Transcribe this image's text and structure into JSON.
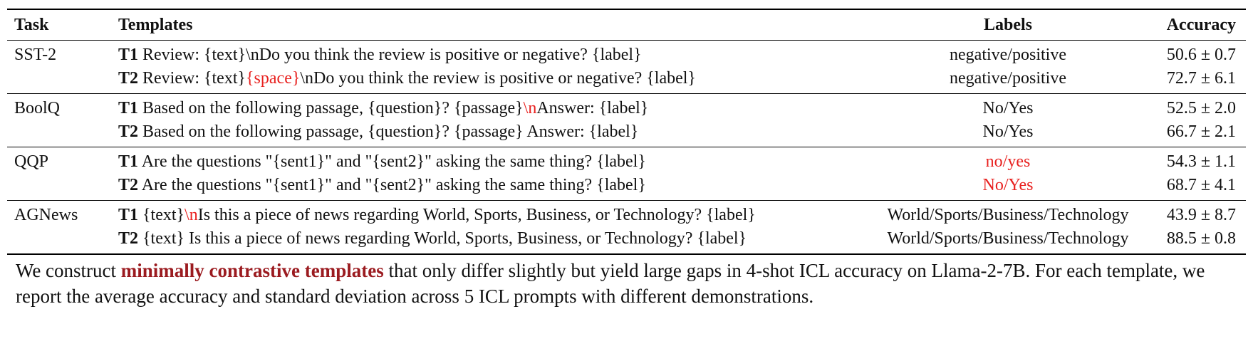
{
  "table": {
    "headers": [
      "Task",
      "Templates",
      "Labels",
      "Accuracy"
    ],
    "groups": [
      {
        "task": "SST-2",
        "rows": [
          {
            "id": "T1",
            "template": [
              {
                "text": " Review: {text}\\nDo you think the review is positive or negative? {label}"
              }
            ],
            "labels": "negative/positive",
            "labels_red": false,
            "accuracy": "50.6 ± 0.7"
          },
          {
            "id": "T2",
            "template": [
              {
                "text": " Review: {text}"
              },
              {
                "text": "{space}",
                "red": true
              },
              {
                "text": "\\nDo you think the review is positive or negative? {label}"
              }
            ],
            "labels": "negative/positive",
            "labels_red": false,
            "accuracy": "72.7 ± 6.1"
          }
        ]
      },
      {
        "task": "BoolQ",
        "rows": [
          {
            "id": "T1",
            "template": [
              {
                "text": " Based on the following passage, {question}? {passage}"
              },
              {
                "text": "\\n",
                "red": true
              },
              {
                "text": "Answer: {label}"
              }
            ],
            "labels": "No/Yes",
            "labels_red": false,
            "accuracy": "52.5 ± 2.0"
          },
          {
            "id": "T2",
            "template": [
              {
                "text": " Based on the following passage, {question}? {passage} Answer: {label}"
              }
            ],
            "labels": "No/Yes",
            "labels_red": false,
            "accuracy": "66.7 ± 2.1"
          }
        ]
      },
      {
        "task": "QQP",
        "rows": [
          {
            "id": "T1",
            "template": [
              {
                "text": " Are the questions \"{sent1}\" and \"{sent2}\" asking the same thing? {label}"
              }
            ],
            "labels": "no/yes",
            "labels_red": true,
            "accuracy": "54.3 ± 1.1"
          },
          {
            "id": "T2",
            "template": [
              {
                "text": " Are the questions \"{sent1}\" and \"{sent2}\" asking the same thing? {label}"
              }
            ],
            "labels": "No/Yes",
            "labels_red": true,
            "accuracy": "68.7 ± 4.1"
          }
        ]
      },
      {
        "task": "AGNews",
        "rows": [
          {
            "id": "T1",
            "template": [
              {
                "text": " {text}"
              },
              {
                "text": "\\n",
                "red": true
              },
              {
                "text": "Is this a piece of news regarding World, Sports, Business, or Technology? {label}"
              }
            ],
            "labels": "World/Sports/Business/Technology",
            "labels_red": false,
            "accuracy": "43.9 ± 8.7"
          },
          {
            "id": "T2",
            "template": [
              {
                "text": " {text} Is this a piece of news regarding World, Sports, Business, or Technology? {label}"
              }
            ],
            "labels": "World/Sports/Business/Technology",
            "labels_red": false,
            "accuracy": "88.5 ± 0.8"
          }
        ]
      }
    ]
  },
  "caption": {
    "prefix": "We construct ",
    "highlight": "minimally contrastive templates",
    "highlight_color": "#9b1b20",
    "suffix": " that only differ slightly but yield large gaps in 4-shot ICL accuracy on Llama-2-7B. For each template, we report the average accuracy and standard deviation across 5 ICL prompts with different demonstrations."
  },
  "colors": {
    "accent_red": "#e8211f",
    "text": "#111111"
  }
}
